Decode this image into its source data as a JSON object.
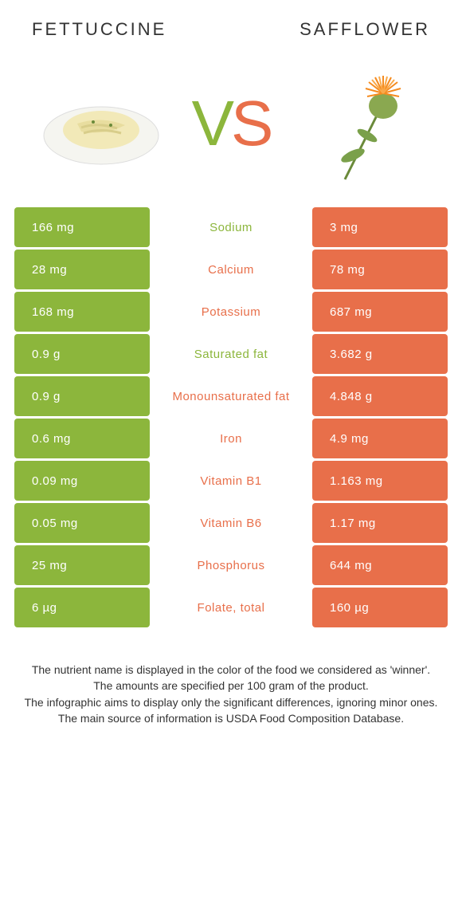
{
  "titles": {
    "left": "Fettuccine",
    "right": "Safflower"
  },
  "vs": {
    "v": "V",
    "s": "S"
  },
  "colors": {
    "green": "#8cb63c",
    "orange": "#e86f4a"
  },
  "rows": [
    {
      "left": "166 mg",
      "label": "Sodium",
      "right": "3 mg",
      "winner": "green"
    },
    {
      "left": "28 mg",
      "label": "Calcium",
      "right": "78 mg",
      "winner": "orange"
    },
    {
      "left": "168 mg",
      "label": "Potassium",
      "right": "687 mg",
      "winner": "orange"
    },
    {
      "left": "0.9 g",
      "label": "Saturated fat",
      "right": "3.682 g",
      "winner": "green"
    },
    {
      "left": "0.9 g",
      "label": "Monounsaturated fat",
      "right": "4.848 g",
      "winner": "orange"
    },
    {
      "left": "0.6 mg",
      "label": "Iron",
      "right": "4.9 mg",
      "winner": "orange"
    },
    {
      "left": "0.09 mg",
      "label": "Vitamin B1",
      "right": "1.163 mg",
      "winner": "orange"
    },
    {
      "left": "0.05 mg",
      "label": "Vitamin B6",
      "right": "1.17 mg",
      "winner": "orange"
    },
    {
      "left": "25 mg",
      "label": "Phosphorus",
      "right": "644 mg",
      "winner": "orange"
    },
    {
      "left": "6 µg",
      "label": "Folate, total",
      "right": "160 µg",
      "winner": "orange"
    }
  ],
  "footer": {
    "l1": "The nutrient name is displayed in the color of the food we considered as 'winner'.",
    "l2": "The amounts are specified per 100 gram of the product.",
    "l3": "The infographic aims to display only the significant differences, ignoring minor ones.",
    "l4": "The main source of information is USDA Food Composition Database."
  }
}
